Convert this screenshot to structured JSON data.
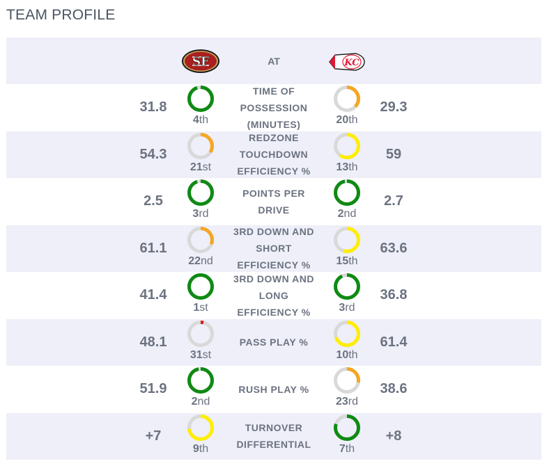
{
  "title": "TEAM PROFILE",
  "header": {
    "at_label": "AT",
    "away_team": "San Francisco 49ers",
    "home_team": "Kansas City Chiefs"
  },
  "colors": {
    "green": "#0f8a14",
    "yellow": "#ffee00",
    "orange": "#f5a623",
    "red": "#d62020",
    "track": "#d9d9d9"
  },
  "rows": [
    {
      "stat": "TIME OF POSSESSION (MINUTES)",
      "away_value": "31.8",
      "away_rank": "4",
      "away_suffix": "th",
      "away_fill": 0.95,
      "away_color": "green",
      "home_value": "29.3",
      "home_rank": "20",
      "home_suffix": "th",
      "home_fill": 0.37,
      "home_color": "orange"
    },
    {
      "stat": "REDZONE TOUCHDOWN EFFICIENCY %",
      "away_value": "54.3",
      "away_rank": "21",
      "away_suffix": "st",
      "away_fill": 0.34,
      "away_color": "orange",
      "home_value": "59",
      "home_rank": "13",
      "home_suffix": "th",
      "home_fill": 0.6,
      "home_color": "yellow"
    },
    {
      "stat": "POINTS PER DRIVE",
      "away_value": "2.5",
      "away_rank": "3",
      "away_suffix": "rd",
      "away_fill": 0.95,
      "away_color": "green",
      "home_value": "2.7",
      "home_rank": "2",
      "home_suffix": "nd",
      "home_fill": 0.97,
      "home_color": "green"
    },
    {
      "stat": "3RD DOWN AND SHORT EFFICIENCY %",
      "away_value": "61.1",
      "away_rank": "22",
      "away_suffix": "nd",
      "away_fill": 0.31,
      "away_color": "orange",
      "home_value": "63.6",
      "home_rank": "15",
      "home_suffix": "th",
      "home_fill": 0.55,
      "home_color": "yellow"
    },
    {
      "stat": "3RD DOWN AND LONG EFFICIENCY %",
      "away_value": "41.4",
      "away_rank": "1",
      "away_suffix": "st",
      "away_fill": 1.0,
      "away_color": "green",
      "home_value": "36.8",
      "home_rank": "3",
      "home_suffix": "rd",
      "home_fill": 0.93,
      "home_color": "green"
    },
    {
      "stat": "PASS PLAY %",
      "away_value": "48.1",
      "away_rank": "31",
      "away_suffix": "st",
      "away_fill": 0.04,
      "away_color": "red",
      "home_value": "61.4",
      "home_rank": "10",
      "home_suffix": "th",
      "home_fill": 0.7,
      "home_color": "yellow"
    },
    {
      "stat": "RUSH PLAY %",
      "away_value": "51.9",
      "away_rank": "2",
      "away_suffix": "nd",
      "away_fill": 0.97,
      "away_color": "green",
      "home_value": "38.6",
      "home_rank": "23",
      "home_suffix": "rd",
      "home_fill": 0.28,
      "home_color": "orange"
    },
    {
      "stat": "TURNOVER DIFFERENTIAL",
      "away_value": "+7",
      "away_rank": "9",
      "away_suffix": "th",
      "away_fill": 0.73,
      "away_color": "yellow",
      "home_value": "+8",
      "home_rank": "7",
      "home_suffix": "th",
      "home_fill": 0.8,
      "home_color": "green"
    }
  ]
}
